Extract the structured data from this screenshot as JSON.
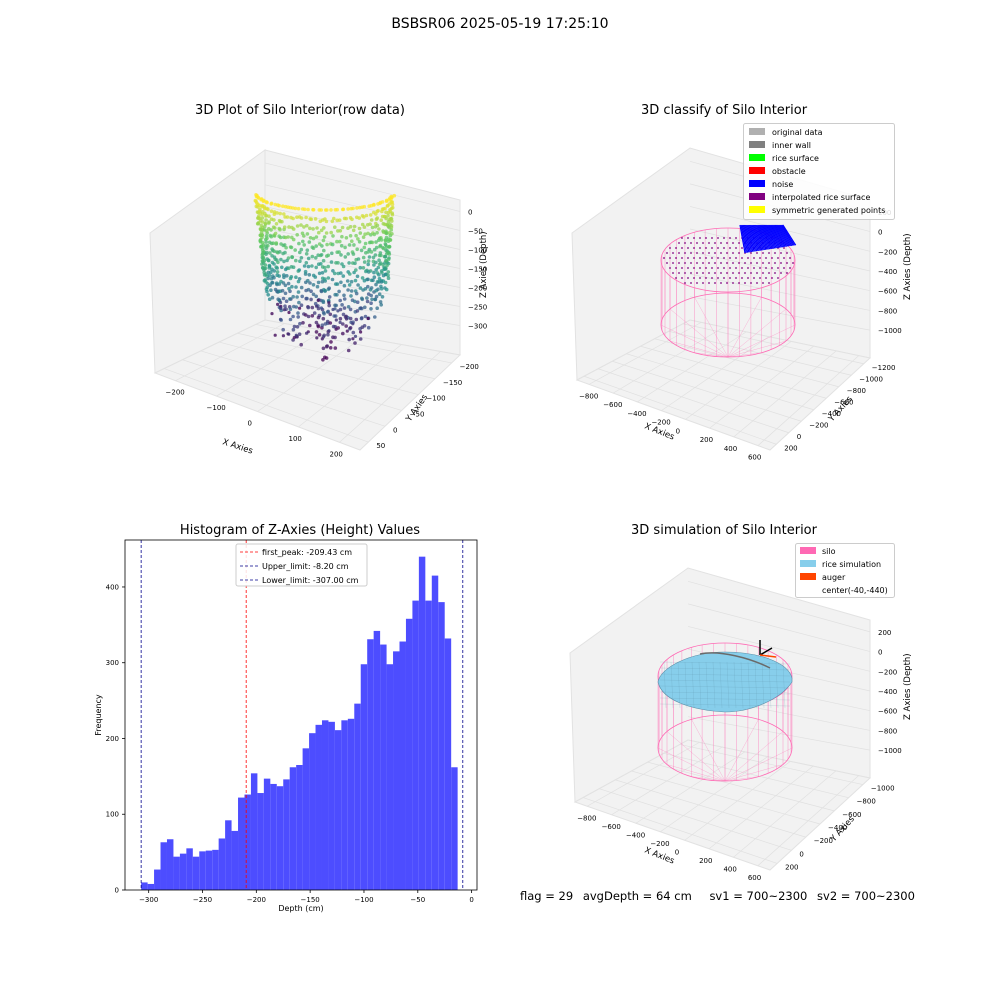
{
  "figure_title": "BSBSR06 2025-05-19 17:25:10",
  "status": {
    "flag": "flag = 29",
    "avg_depth": "avgDepth = 64 cm",
    "sv1": "sv1 = 700~2300",
    "sv2": "sv2 = 700~2300"
  },
  "colors": {
    "silo": "#ff69b4",
    "rice_simulation": "#87ceeb",
    "auger": "#ff4500",
    "noise": "#0000ff",
    "histogram": "#4d4dff",
    "first_peak": "#ff0000",
    "limits": "#00008b"
  },
  "chart_data": [
    {
      "type": "scatter",
      "title": "3D Plot of Silo Interior(row data)",
      "xlabel": "X Axies",
      "ylabel": "Y Axies",
      "zlabel": "Z Axies (Depth)",
      "x_ticks": [
        "−200",
        "−100",
        "0",
        "100",
        "200"
      ],
      "y_ticks": [
        "50",
        "0",
        "−50",
        "−100",
        "−150",
        "−200"
      ],
      "z_ticks": [
        "0",
        "−50",
        "−100",
        "−150",
        "−200",
        "−250",
        "−300"
      ],
      "xlim": [
        -250,
        250
      ],
      "ylim": [
        -200,
        75
      ],
      "zlim": [
        -320,
        10
      ],
      "colormap": "viridis"
    },
    {
      "type": "scatter",
      "title": "3D classify of Silo Interior",
      "xlabel": "X Axies",
      "ylabel": "Y Axies",
      "zlabel": "Z Axies (Depth)",
      "x_ticks": [
        "−800",
        "−600",
        "−400",
        "−200",
        "0",
        "200",
        "400",
        "600"
      ],
      "y_ticks": [
        "200",
        "0",
        "−200",
        "−400",
        "−600",
        "−800",
        "−1000",
        "−1200"
      ],
      "z_ticks": [
        "200",
        "0",
        "−200",
        "−400",
        "−600",
        "−800",
        "−1000"
      ],
      "legend": [
        {
          "label": "original data",
          "color": "#b0b0b0"
        },
        {
          "label": "inner wall",
          "color": "#808080"
        },
        {
          "label": "rice surface",
          "color": "#00ff00"
        },
        {
          "label": "obstacle",
          "color": "#ff0000"
        },
        {
          "label": "noise",
          "color": "#0000ff"
        },
        {
          "label": "interpolated rice surface",
          "color": "#800080"
        },
        {
          "label": "symmetric generated points",
          "color": "#ffff00"
        }
      ],
      "legend_position": "top-right"
    },
    {
      "type": "bar",
      "title": "Histogram of Z-Axies (Height) Values",
      "xlabel": "Depth (cm)",
      "ylabel": "Frequency",
      "xlim": [
        -322,
        5
      ],
      "ylim": [
        0,
        462
      ],
      "x_ticks": [
        -300,
        -250,
        -200,
        -150,
        -100,
        -50,
        0
      ],
      "y_ticks": [
        0,
        100,
        200,
        300,
        400
      ],
      "bin_start": -307,
      "bin_width": 6,
      "values": [
        10,
        8,
        27,
        63,
        67,
        44,
        48,
        55,
        44,
        51,
        52,
        53,
        68,
        92,
        78,
        122,
        126,
        154,
        128,
        147,
        140,
        137,
        146,
        162,
        165,
        187,
        207,
        218,
        224,
        222,
        211,
        224,
        226,
        246,
        298,
        331,
        342,
        324,
        298,
        315,
        328,
        358,
        382,
        440,
        382,
        415,
        380,
        332,
        162
      ],
      "lines": [
        {
          "label": "first_peak: -209.43 cm",
          "x": -209.43,
          "color": "#ff0000"
        },
        {
          "label": "Upper_limit: -8.20 cm",
          "x": -8.2,
          "color": "#00008b"
        },
        {
          "label": "Lower_limit: -307.00 cm",
          "x": -307.0,
          "color": "#00008b"
        }
      ],
      "legend_position": "top-center"
    },
    {
      "type": "scatter",
      "title": "3D simulation of Silo Interior",
      "xlabel": "X Axies",
      "ylabel": "Y Axies",
      "zlabel": "Z Axies (Depth)",
      "x_ticks": [
        "−800",
        "−600",
        "−400",
        "−200",
        "0",
        "200",
        "400",
        "600"
      ],
      "y_ticks": [
        "200",
        "0",
        "−200",
        "−400",
        "−600",
        "−800",
        "−1000"
      ],
      "z_ticks": [
        "200",
        "0",
        "−200",
        "−400",
        "−600",
        "−800",
        "−1000"
      ],
      "legend": [
        {
          "label": "silo",
          "color": "#ff69b4"
        },
        {
          "label": "rice simulation",
          "color": "#87ceeb"
        },
        {
          "label": "auger",
          "color": "#ff4500"
        },
        {
          "label": "center(-40,-440)",
          "color": ""
        }
      ],
      "legend_position": "top-right"
    }
  ]
}
